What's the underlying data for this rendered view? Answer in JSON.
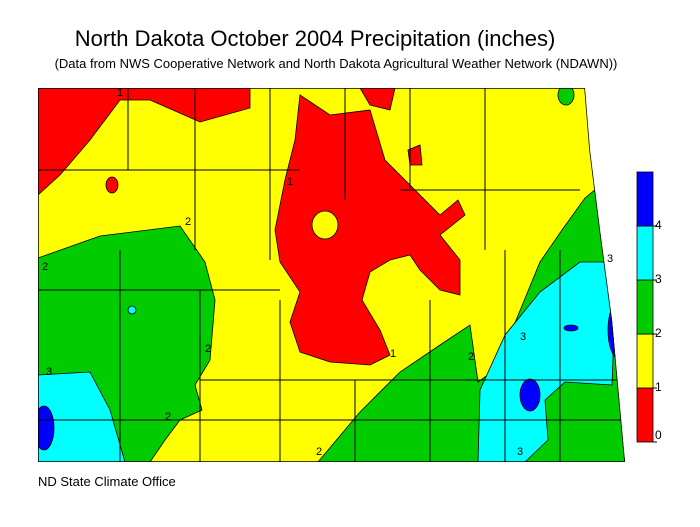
{
  "title": "North Dakota October 2004 Precipitation (inches)",
  "subtitle": "(Data from NWS Cooperative Network and North Dakota Agricultural Weather Network (NDAWN))",
  "footer": "ND State Climate Office",
  "legend": {
    "ticks": [
      0,
      1,
      2,
      3,
      4
    ],
    "colors": [
      "#ff0000",
      "#ffff00",
      "#00cc00",
      "#00ffff",
      "#0000ff"
    ]
  },
  "contour_labels": [
    "1",
    "1",
    "2",
    "2",
    "2",
    "2",
    "2",
    "3",
    "3",
    "3",
    "3",
    "2",
    "1"
  ]
}
